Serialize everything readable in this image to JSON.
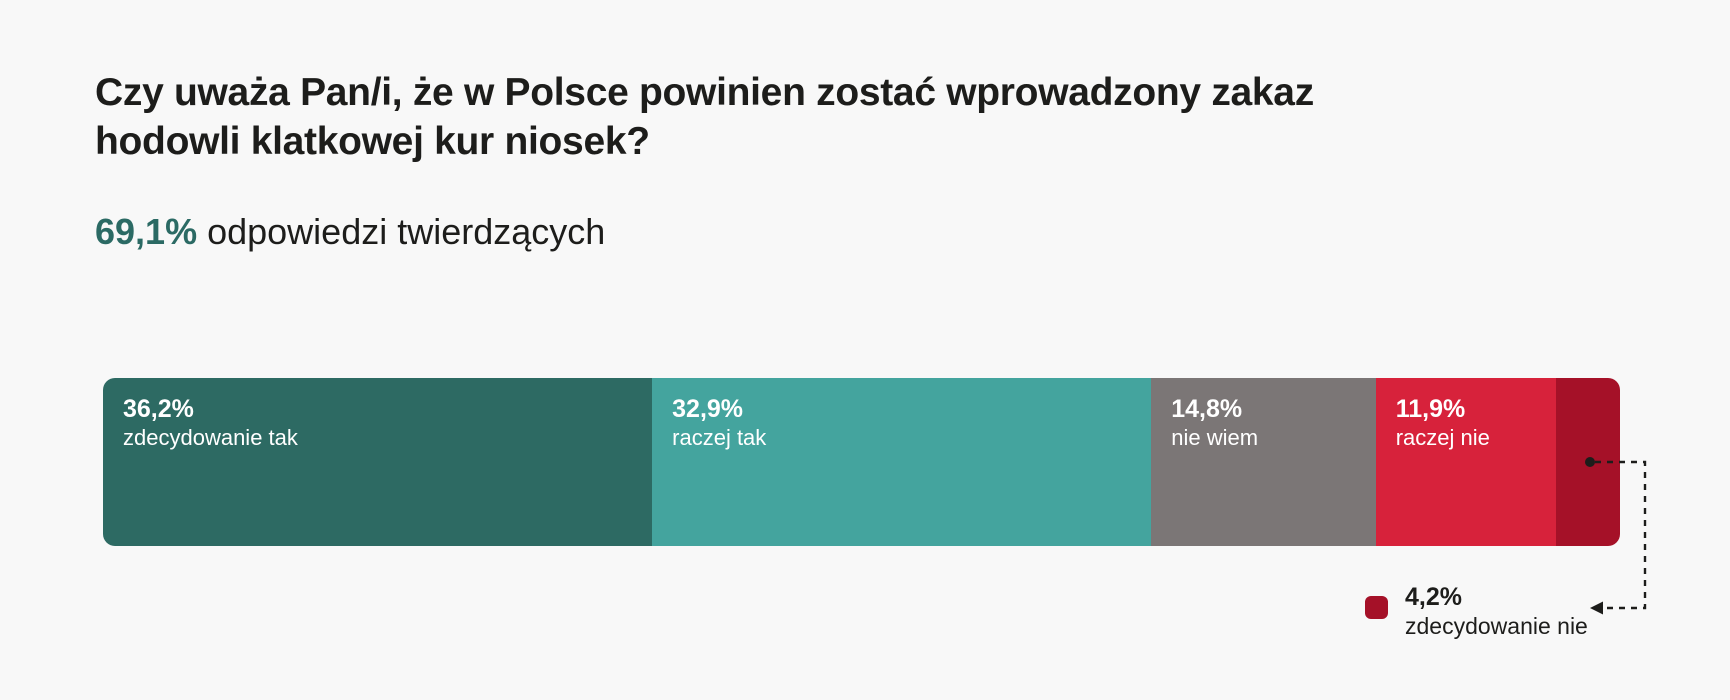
{
  "page": {
    "background_color": "#f8f8f8",
    "text_color": "#1d1d1b",
    "accent_color": "#2b6a64"
  },
  "header": {
    "title_line1": "Czy uważa Pan/i, że w Polsce powinien zostać wprowadzony zakaz",
    "title_line2": "hodowli klatkowej kur niosek?",
    "highlight_value": "69,1%",
    "highlight_text": "odpowiedzi twierdzących"
  },
  "chart_data": {
    "type": "bar",
    "variant": "horizontal-stacked",
    "title": "Czy uważa Pan/i, że w Polsce powinien zostać wprowadzony zakaz hodowli klatkowej kur niosek?",
    "subtitle": "69,1% odpowiedzi twierdzących",
    "categories": [
      "zdecydowanie tak",
      "raczej tak",
      "nie wiem",
      "raczej nie",
      "zdecydowanie nie"
    ],
    "values": [
      36.2,
      32.9,
      14.8,
      11.9,
      4.2
    ],
    "value_labels": [
      "36,2%",
      "32,9%",
      "14,8%",
      "11,9%",
      "4,2%"
    ],
    "colors": [
      "#2d6a63",
      "#44a49e",
      "#7b7676",
      "#d7223b",
      "#a51128"
    ],
    "xlim": [
      0,
      100
    ],
    "grid": false,
    "legend_position": "callout-below-last-segment",
    "affirmative_total": 69.1
  },
  "segments": [
    {
      "pct": "36,2%",
      "label": "zdecydowanie tak",
      "value": 36.2,
      "color": "#2d6a63"
    },
    {
      "pct": "32,9%",
      "label": "raczej tak",
      "value": 32.9,
      "color": "#44a49e"
    },
    {
      "pct": "14,8%",
      "label": "nie wiem",
      "value": 14.8,
      "color": "#7b7676"
    },
    {
      "pct": "11,9%",
      "label": "raczej nie",
      "value": 11.9,
      "color": "#d7223b"
    },
    {
      "pct": "4,2%",
      "label": "zdecydowanie nie",
      "value": 4.2,
      "color": "#a51128"
    }
  ],
  "callout": {
    "pct": "4,2%",
    "label": "zdecydowanie nie",
    "swatch_color": "#a51128",
    "line_color": "#1d1d1b"
  }
}
